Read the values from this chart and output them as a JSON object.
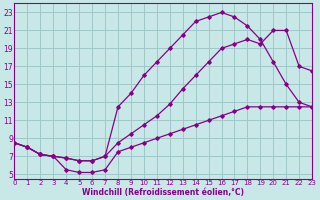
{
  "xlabel": "Windchill (Refroidissement éolien,°C)",
  "background_color": "#c8e8e8",
  "grid_color": "#a0c8c8",
  "line_color": "#880088",
  "xlim": [
    0,
    23
  ],
  "ylim": [
    4.5,
    24
  ],
  "xticks": [
    0,
    1,
    2,
    3,
    4,
    5,
    6,
    7,
    8,
    9,
    10,
    11,
    12,
    13,
    14,
    15,
    16,
    17,
    18,
    19,
    20,
    21,
    22,
    23
  ],
  "yticks": [
    5,
    7,
    9,
    11,
    13,
    15,
    17,
    19,
    21,
    23
  ],
  "line_top_x": [
    0,
    1,
    2,
    3,
    4,
    5,
    6,
    7,
    8,
    9,
    10,
    11,
    12,
    13,
    14,
    15,
    16,
    17,
    18,
    19,
    20,
    21,
    22,
    23
  ],
  "line_top_y": [
    8.5,
    8.0,
    7.2,
    7.0,
    6.8,
    6.5,
    6.5,
    7.0,
    12.5,
    14.0,
    16.0,
    17.5,
    19.0,
    20.5,
    22.0,
    22.5,
    23.0,
    22.5,
    21.5,
    20.0,
    17.5,
    15.0,
    13.0,
    12.5
  ],
  "line_mid_x": [
    0,
    1,
    2,
    3,
    4,
    5,
    6,
    7,
    8,
    9,
    10,
    11,
    12,
    13,
    14,
    15,
    16,
    17,
    18,
    19,
    20,
    21,
    22,
    23
  ],
  "line_mid_y": [
    8.5,
    8.0,
    7.2,
    7.0,
    6.8,
    6.5,
    6.5,
    7.0,
    8.5,
    9.5,
    10.5,
    11.5,
    12.8,
    14.5,
    16.0,
    17.5,
    19.0,
    19.5,
    20.0,
    19.5,
    21.0,
    21.0,
    17.0,
    16.5
  ],
  "line_bot_x": [
    0,
    1,
    2,
    3,
    4,
    5,
    6,
    7,
    8,
    9,
    10,
    11,
    12,
    13,
    14,
    15,
    16,
    17,
    18,
    19,
    20,
    21,
    22,
    23
  ],
  "line_bot_y": [
    8.5,
    8.0,
    7.2,
    7.0,
    5.5,
    5.2,
    5.2,
    5.5,
    7.5,
    8.0,
    8.5,
    9.0,
    9.5,
    10.0,
    10.5,
    11.0,
    11.5,
    12.0,
    12.5,
    12.5,
    12.5,
    12.5,
    12.5,
    12.5
  ]
}
